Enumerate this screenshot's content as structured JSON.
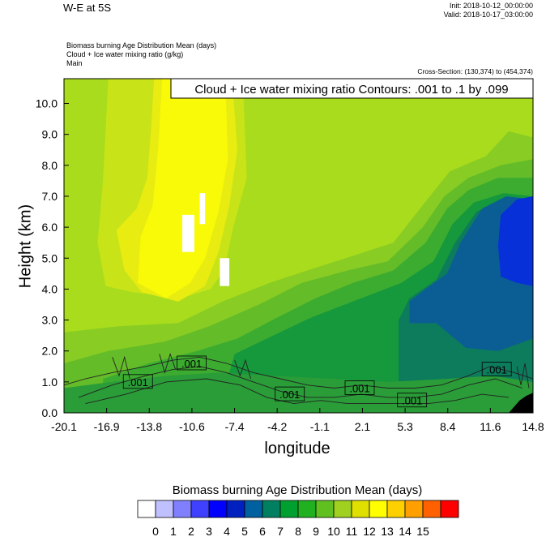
{
  "header": {
    "title": "W-E at 5S",
    "init": "Init: 2018-10-12_00:00:00",
    "valid": "Valid: 2018-10-17_03:00:00",
    "fields": [
      "Biomass burning Age Distribution Mean   (days)",
      "Cloud + Ice water mixing ratio   (g/kg)",
      "Main"
    ],
    "cross_section": "Cross-Section: (130,374) to (454,374)"
  },
  "chart_data": {
    "type": "heatmap",
    "contour_label": "Cloud + Ice water mixing ratio Contours: .001 to .1 by .099",
    "xlabel": "longitude",
    "ylabel": "Height (km)",
    "x_ticks": [
      "-20.1",
      "-16.9",
      "-13.8",
      "-10.6",
      "-7.4",
      "-4.2",
      "-1.1",
      "2.1",
      "5.3",
      "8.4",
      "11.6",
      "14.8"
    ],
    "y_ticks": [
      "0.0",
      "1.0",
      "2.0",
      "3.0",
      "4.0",
      "5.0",
      "6.0",
      "7.0",
      "8.0",
      "9.0",
      "10.0"
    ],
    "xlim": [
      -20.1,
      14.8
    ],
    "ylim": [
      0.0,
      10.8
    ],
    "contour_labels": [
      {
        "text": ".001",
        "lon": -14.6,
        "h": 1.0
      },
      {
        "text": ".001",
        "lon": -10.6,
        "h": 1.6
      },
      {
        "text": ".001",
        "lon": -3.3,
        "h": 0.6
      },
      {
        "text": ".001",
        "lon": 1.9,
        "h": 0.8
      },
      {
        "text": ".001",
        "lon": 5.8,
        "h": 0.4
      },
      {
        "text": ".001",
        "lon": 12.1,
        "h": 1.4
      }
    ],
    "colorbar": {
      "title": "Biomass burning Age Distribution Mean  (days)",
      "labels": [
        "0",
        "1",
        "2",
        "3",
        "4",
        "5",
        "6",
        "7",
        "8",
        "9",
        "10",
        "11",
        "12",
        "13",
        "14",
        "15"
      ],
      "colors": [
        "#ffffff",
        "#c0c0ff",
        "#8080ff",
        "#4040ff",
        "#0000ff",
        "#0020c0",
        "#0060a0",
        "#008060",
        "#00a030",
        "#20b020",
        "#60c020",
        "#a0d020",
        "#e0e000",
        "#ffff00",
        "#ffd000",
        "#ffa000",
        "#ff6000",
        "#ff0000"
      ]
    },
    "regions": [
      {
        "fill": "#a8dc1c",
        "poly": [
          [
            -20.1,
            0
          ],
          [
            14.8,
            0
          ],
          [
            14.8,
            10.8
          ],
          [
            -20.1,
            10.8
          ]
        ]
      },
      {
        "fill": "#c8e418",
        "poly": [
          [
            -16.8,
            10.8
          ],
          [
            -6.8,
            10.8
          ],
          [
            -6.5,
            7.6
          ],
          [
            -7.5,
            6.0
          ],
          [
            -8.2,
            4.6
          ],
          [
            -9.2,
            4.0
          ],
          [
            -11.4,
            3.7
          ],
          [
            -15.0,
            3.9
          ],
          [
            -17.0,
            4.1
          ],
          [
            -17.6,
            5.5
          ],
          [
            -17.2,
            7.5
          ]
        ]
      },
      {
        "fill": "#e8ec10",
        "poly": [
          [
            -13.4,
            10.8
          ],
          [
            -7.6,
            10.8
          ],
          [
            -7.2,
            8.5
          ],
          [
            -7.8,
            6.7
          ],
          [
            -8.6,
            5.2
          ],
          [
            -9.6,
            4.1
          ],
          [
            -11.6,
            3.6
          ],
          [
            -14.3,
            3.9
          ],
          [
            -15.6,
            4.6
          ],
          [
            -16.2,
            5.9
          ],
          [
            -14.7,
            6.6
          ],
          [
            -13.9,
            7.6
          ],
          [
            -13.6,
            9.3
          ]
        ]
      },
      {
        "fill": "#f8fa08",
        "poly": [
          [
            -12.8,
            10.8
          ],
          [
            -8.1,
            10.8
          ],
          [
            -7.9,
            8.2
          ],
          [
            -8.6,
            6.5
          ],
          [
            -9.6,
            5.0
          ],
          [
            -10.7,
            4.2
          ],
          [
            -12.5,
            3.7
          ],
          [
            -14.6,
            4.2
          ],
          [
            -14.4,
            5.7
          ],
          [
            -13.5,
            6.7
          ],
          [
            -13.1,
            8.5
          ]
        ]
      },
      {
        "fill": "#88cc24",
        "poly": [
          [
            -20.1,
            0
          ],
          [
            14.8,
            0
          ],
          [
            14.8,
            8.9
          ],
          [
            13.0,
            9.1
          ],
          [
            11.3,
            8.3
          ],
          [
            8.6,
            7.8
          ],
          [
            6.4,
            6.6
          ],
          [
            4.4,
            5.5
          ],
          [
            1.6,
            5.1
          ],
          [
            -1.3,
            4.7
          ],
          [
            -4.8,
            4.2
          ],
          [
            -8.3,
            3.6
          ],
          [
            -11.6,
            2.9
          ],
          [
            -16.0,
            2.8
          ],
          [
            -20.1,
            2.6
          ]
        ]
      },
      {
        "fill": "#64bc28",
        "poly": [
          [
            -20.1,
            0
          ],
          [
            14.8,
            0
          ],
          [
            14.8,
            8.2
          ],
          [
            12.4,
            8.0
          ],
          [
            10.0,
            7.6
          ],
          [
            8.2,
            7.0
          ],
          [
            6.6,
            6.0
          ],
          [
            4.0,
            4.9
          ],
          [
            1.0,
            4.6
          ],
          [
            -2.4,
            4.2
          ],
          [
            -5.6,
            3.5
          ],
          [
            -9.3,
            2.8
          ],
          [
            -12.6,
            2.3
          ],
          [
            -16.8,
            2.0
          ],
          [
            -20.1,
            1.6
          ]
        ]
      },
      {
        "fill": "#3cac30",
        "poly": [
          [
            -17.2,
            0
          ],
          [
            14.8,
            0
          ],
          [
            14.8,
            7.6
          ],
          [
            12.2,
            7.6
          ],
          [
            10.0,
            7.2
          ],
          [
            8.4,
            6.6
          ],
          [
            6.8,
            5.5
          ],
          [
            4.4,
            4.6
          ],
          [
            1.4,
            4.2
          ],
          [
            -1.4,
            3.7
          ],
          [
            -4.6,
            3.0
          ],
          [
            -7.2,
            2.4
          ],
          [
            -10.2,
            2.0
          ],
          [
            -13.8,
            1.6
          ],
          [
            -17.2,
            1.1
          ]
        ]
      },
      {
        "fill": "#16983c",
        "poly": [
          [
            -8.0,
            0
          ],
          [
            14.8,
            0
          ],
          [
            14.8,
            7.0
          ],
          [
            12.6,
            7.1
          ],
          [
            10.4,
            6.8
          ],
          [
            8.8,
            6.1
          ],
          [
            7.4,
            4.9
          ],
          [
            5.0,
            4.2
          ],
          [
            2.0,
            3.7
          ],
          [
            -1.6,
            3.1
          ],
          [
            -5.0,
            2.4
          ],
          [
            -7.4,
            1.9
          ],
          [
            -8.0,
            1.0
          ]
        ]
      },
      {
        "fill": "#0c7c5c",
        "poly": [
          [
            4.8,
            1.0
          ],
          [
            14.8,
            1.0
          ],
          [
            14.8,
            6.9
          ],
          [
            12.6,
            6.9
          ],
          [
            10.6,
            6.5
          ],
          [
            9.0,
            5.5
          ],
          [
            7.6,
            4.3
          ],
          [
            5.6,
            3.7
          ],
          [
            4.8,
            3.0
          ]
        ]
      },
      {
        "fill": "#0b5e94",
        "poly": [
          [
            5.6,
            2.9
          ],
          [
            7.6,
            2.9
          ],
          [
            9.8,
            2.1
          ],
          [
            12.2,
            2.0
          ],
          [
            14.8,
            2.4
          ],
          [
            14.8,
            6.9
          ],
          [
            12.8,
            7.0
          ],
          [
            11.0,
            6.6
          ],
          [
            9.4,
            5.5
          ],
          [
            8.4,
            4.5
          ],
          [
            6.8,
            4.0
          ],
          [
            5.6,
            3.6
          ]
        ]
      },
      {
        "fill": "#0730d8",
        "poly": [
          [
            12.4,
            4.4
          ],
          [
            13.6,
            4.2
          ],
          [
            14.8,
            4.1
          ],
          [
            14.8,
            7.0
          ],
          [
            13.6,
            6.9
          ],
          [
            12.4,
            6.4
          ],
          [
            12.2,
            5.4
          ]
        ]
      },
      {
        "fill": "#2a9c38",
        "poly": [
          [
            -20.1,
            0
          ],
          [
            14.8,
            0
          ],
          [
            14.8,
            1.0
          ],
          [
            11.8,
            1.2
          ],
          [
            8.4,
            1.1
          ],
          [
            4.0,
            1.0
          ],
          [
            0.0,
            1.1
          ],
          [
            -4.6,
            1.2
          ],
          [
            -8.6,
            1.3
          ],
          [
            -12.4,
            1.2
          ],
          [
            -16.6,
            1.0
          ],
          [
            -20.1,
            0.8
          ]
        ]
      },
      {
        "fill": "#ffffff",
        "poly": [
          [
            -11.3,
            5.2
          ],
          [
            -10.4,
            5.2
          ],
          [
            -10.4,
            6.4
          ],
          [
            -11.3,
            6.4
          ]
        ]
      },
      {
        "fill": "#ffffff",
        "poly": [
          [
            -10.0,
            6.1
          ],
          [
            -9.6,
            6.1
          ],
          [
            -9.6,
            7.1
          ],
          [
            -10.0,
            7.1
          ]
        ]
      },
      {
        "fill": "#ffffff",
        "poly": [
          [
            -8.5,
            4.1
          ],
          [
            -7.8,
            4.1
          ],
          [
            -7.8,
            5.0
          ],
          [
            -8.5,
            5.0
          ]
        ]
      },
      {
        "fill": "#000000",
        "poly": [
          [
            13.0,
            0
          ],
          [
            14.8,
            0
          ],
          [
            14.8,
            0.65
          ],
          [
            14.3,
            0.55
          ],
          [
            13.8,
            0.4
          ],
          [
            13.3,
            0.15
          ]
        ]
      }
    ],
    "contours": [
      [
        [
          -20.1,
          0.9
        ],
        [
          -18.5,
          1.1
        ],
        [
          -16.5,
          1.3
        ],
        [
          -14.0,
          1.5
        ],
        [
          -12.0,
          1.7
        ],
        [
          -10.0,
          1.8
        ],
        [
          -8.0,
          1.6
        ],
        [
          -6.0,
          1.3
        ],
        [
          -4.0,
          1.1
        ],
        [
          -2.0,
          0.9
        ],
        [
          0.0,
          0.8
        ],
        [
          2.0,
          0.9
        ],
        [
          4.0,
          0.8
        ],
        [
          6.0,
          0.8
        ],
        [
          8.0,
          0.9
        ],
        [
          10.0,
          1.2
        ],
        [
          11.6,
          1.5
        ],
        [
          13.4,
          1.3
        ],
        [
          14.8,
          1.1
        ]
      ],
      [
        [
          -19.0,
          0.5
        ],
        [
          -16.5,
          0.9
        ],
        [
          -14.0,
          1.2
        ],
        [
          -12.0,
          1.4
        ],
        [
          -10.0,
          1.5
        ],
        [
          -8.0,
          1.3
        ],
        [
          -6.0,
          1.0
        ],
        [
          -4.0,
          0.7
        ],
        [
          -2.0,
          0.5
        ],
        [
          0.0,
          0.5
        ],
        [
          2.0,
          0.6
        ],
        [
          4.0,
          0.5
        ],
        [
          6.0,
          0.5
        ],
        [
          8.0,
          0.6
        ],
        [
          10.0,
          0.9
        ],
        [
          12.0,
          1.1
        ],
        [
          14.0,
          0.8
        ]
      ],
      [
        [
          -18.5,
          0.3
        ],
        [
          -15.5,
          0.6
        ],
        [
          -12.5,
          1.0
        ],
        [
          -9.5,
          1.1
        ],
        [
          -7.0,
          0.9
        ],
        [
          -5.0,
          0.5
        ],
        [
          -3.0,
          0.3
        ],
        [
          -1.0,
          0.4
        ],
        [
          1.0,
          0.3
        ],
        [
          3.0,
          0.3
        ],
        [
          5.0,
          0.3
        ],
        [
          7.0,
          0.3
        ],
        [
          9.0,
          0.4
        ],
        [
          11.0,
          0.6
        ],
        [
          13.0,
          0.5
        ]
      ],
      [
        [
          -16.5,
          1.8
        ],
        [
          -16.0,
          1.2
        ],
        [
          -15.6,
          1.8
        ],
        [
          -15.2,
          1.1
        ]
      ],
      [
        [
          -13.0,
          1.9
        ],
        [
          -12.6,
          1.3
        ],
        [
          -12.2,
          1.9
        ],
        [
          -11.8,
          1.4
        ]
      ],
      [
        [
          -7.4,
          1.7
        ],
        [
          -7.0,
          1.2
        ],
        [
          -6.6,
          1.7
        ],
        [
          -6.2,
          1.1
        ]
      ],
      [
        [
          13.6,
          1.5
        ],
        [
          13.9,
          0.9
        ],
        [
          14.2,
          1.6
        ],
        [
          14.5,
          0.8
        ]
      ]
    ]
  }
}
